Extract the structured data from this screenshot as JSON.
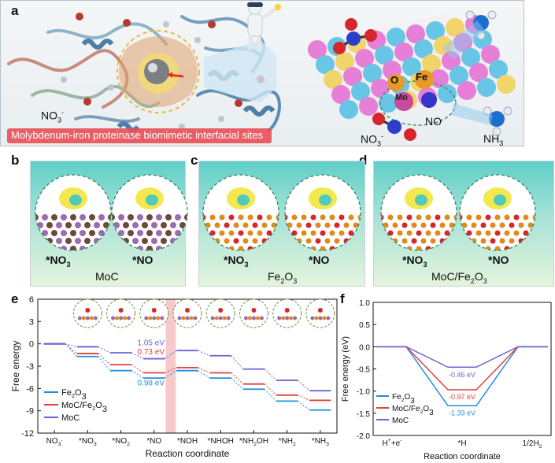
{
  "panel_labels": {
    "a": "a",
    "b": "b",
    "c": "c",
    "d": "d",
    "e": "e",
    "f": "f"
  },
  "panel_a": {
    "banner": "Molybdenum-iron proteinase biomimetic interfacial sites",
    "label_no3_left": "NO",
    "label_no3_left_sub": "3",
    "label_no3_left_sup": "-",
    "atom_o": "O",
    "atom_fe": "Fe",
    "atom_mo": "Mo",
    "label_no": "NO",
    "label_no3_right": "NO",
    "label_no3_right_sub": "3",
    "label_no3_right_sup": "-",
    "label_nh3": "NH",
    "label_nh3_sub": "3"
  },
  "panel_b": {
    "left": "*NO",
    "left_sub": "3",
    "right": "*NO",
    "caption": "MoC"
  },
  "panel_c": {
    "left": "*NO",
    "left_sub": "3",
    "right": "*NO",
    "caption_main": "Fe",
    "caption_sub1": "2",
    "caption_mid": "O",
    "caption_sub2": "3"
  },
  "panel_d": {
    "left": "*NO",
    "left_sub": "3",
    "right": "*NO",
    "caption_main": "MoC/Fe",
    "caption_sub1": "2",
    "caption_mid": "O",
    "caption_sub2": "3"
  },
  "colors": {
    "fe2o3": "#1e90e0",
    "mocfe2o3": "#e0413c",
    "moc": "#6b63d8",
    "highlight": "#f2b3b3"
  },
  "chart_data": [
    {
      "type": "line",
      "title": "",
      "xlabel": "Reaction coordinate",
      "ylabel": "Free energy",
      "ylim": [
        -12,
        6
      ],
      "yticks": [
        "6",
        "3",
        "0",
        "-3",
        "-6",
        "-9",
        "-12"
      ],
      "categories": [
        "NO3-",
        "*NO3",
        "*NO2",
        "*NO",
        "*NOH",
        "*NHOH",
        "*NH2OH",
        "*NH2",
        "*NH3"
      ],
      "category_labels": [
        {
          "main": "NO",
          "sub": "3",
          "sup": "-"
        },
        {
          "main": "*NO",
          "sub": "3",
          "sup": ""
        },
        {
          "main": "*NO",
          "sub": "2",
          "sup": ""
        },
        {
          "main": "*NO",
          "sub": "",
          "sup": ""
        },
        {
          "main": "*NOH",
          "sub": "",
          "sup": ""
        },
        {
          "main": "*NHOH",
          "sub": "",
          "sup": ""
        },
        {
          "main": "*NH",
          "sub": "2",
          "post": "OH"
        },
        {
          "main": "*NH",
          "sub": "2",
          "sup": ""
        },
        {
          "main": "*NH",
          "sub": "3",
          "sup": ""
        }
      ],
      "series": [
        {
          "name": "Fe2O3",
          "legend_main": "Fe",
          "legend_sub1": "2",
          "legend_mid": "O",
          "legend_sub2": "3",
          "values": [
            0,
            -1.7,
            -3.6,
            -4.6,
            -3.6,
            -4.6,
            -6.1,
            -7.7,
            -8.9
          ]
        },
        {
          "name": "MoC/Fe2O3",
          "legend_main": "MoC/Fe",
          "legend_sub1": "2",
          "legend_mid": "O",
          "legend_sub2": "3",
          "values": [
            0,
            -1.3,
            -2.8,
            -3.9,
            -3.2,
            -3.9,
            -5.4,
            -6.9,
            -7.6
          ]
        },
        {
          "name": "MoC",
          "legend_main": "MoC",
          "values": [
            0,
            -0.4,
            -1.2,
            -2.0,
            -0.9,
            -1.6,
            -3.4,
            -4.9,
            -6.3
          ]
        }
      ],
      "annotations": [
        {
          "text": "1.05 eV",
          "series": "MoC"
        },
        {
          "text": "0.73 eV",
          "series": "MoC/Fe2O3"
        },
        {
          "text": "0.98 eV",
          "series": "Fe2O3"
        }
      ],
      "highlight_step": "*NO -> *NOH"
    },
    {
      "type": "line",
      "title": "",
      "xlabel": "Reaction coordinate",
      "ylabel": "Free energy (eV)",
      "ylim": [
        -2.0,
        1.0
      ],
      "yticks": [
        "1.0",
        "0.5",
        "0.0",
        "-0.5",
        "-1.0",
        "-1.5",
        "-2.0"
      ],
      "categories": [
        "H++e-",
        "*H",
        "1/2H2"
      ],
      "category_labels": [
        {
          "main": "H",
          "sup1": "+",
          "mid": "+e",
          "sup2": "-"
        },
        {
          "main": "*H"
        },
        {
          "main": "1/2H",
          "sub": "2"
        }
      ],
      "series": [
        {
          "name": "Fe2O3",
          "legend_main": "Fe",
          "legend_sub1": "2",
          "legend_mid": "O",
          "legend_sub2": "3",
          "values": [
            0,
            -1.33,
            0
          ]
        },
        {
          "name": "MoC/Fe2O3",
          "legend_main": "MoC/Fe",
          "legend_sub1": "2",
          "legend_mid": "O",
          "legend_sub2": "3",
          "values": [
            0,
            -0.97,
            0
          ]
        },
        {
          "name": "MoC",
          "legend_main": "MoC",
          "values": [
            0,
            -0.46,
            0
          ]
        }
      ],
      "annotations": [
        {
          "text": "-0.46 eV",
          "series": "MoC"
        },
        {
          "text": "-0.97 eV",
          "series": "MoC/Fe2O3"
        },
        {
          "text": "-1.33 eV",
          "series": "Fe2O3"
        }
      ]
    }
  ]
}
